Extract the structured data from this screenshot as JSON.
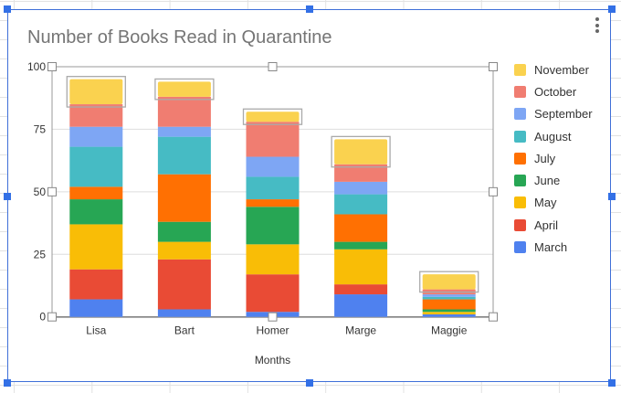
{
  "chart_data": {
    "type": "bar",
    "stacked": true,
    "title": "Number of Books Read in Quarantine",
    "xlabel": "Months",
    "ylabel": "",
    "ylim": [
      0,
      100
    ],
    "yticks": [
      "0",
      "25",
      "50",
      "75",
      "100"
    ],
    "grid": true,
    "legend_position": "right",
    "categories": [
      "Lisa",
      "Bart",
      "Homer",
      "Marge",
      "Maggie"
    ],
    "series": [
      {
        "name": "March",
        "color": "#4f81ef",
        "values": [
          7,
          3,
          2,
          9,
          1
        ]
      },
      {
        "name": "April",
        "color": "#e94b35",
        "values": [
          12,
          20,
          15,
          4,
          0
        ]
      },
      {
        "name": "May",
        "color": "#f9bd06",
        "values": [
          18,
          7,
          12,
          14,
          1
        ]
      },
      {
        "name": "June",
        "color": "#27a654",
        "values": [
          10,
          8,
          15,
          3,
          1
        ]
      },
      {
        "name": "July",
        "color": "#ff7002",
        "values": [
          5,
          19,
          3,
          11,
          4
        ]
      },
      {
        "name": "August",
        "color": "#46bbc4",
        "values": [
          16,
          15,
          9,
          8,
          1
        ]
      },
      {
        "name": "September",
        "color": "#7ea6f4",
        "values": [
          8,
          4,
          8,
          5,
          1
        ]
      },
      {
        "name": "October",
        "color": "#f07d71",
        "values": [
          9,
          12,
          14,
          7,
          2
        ]
      },
      {
        "name": "November",
        "color": "#fad24f",
        "values": [
          10,
          6,
          4,
          10,
          6
        ]
      }
    ]
  },
  "selection_color": "#3370e6"
}
